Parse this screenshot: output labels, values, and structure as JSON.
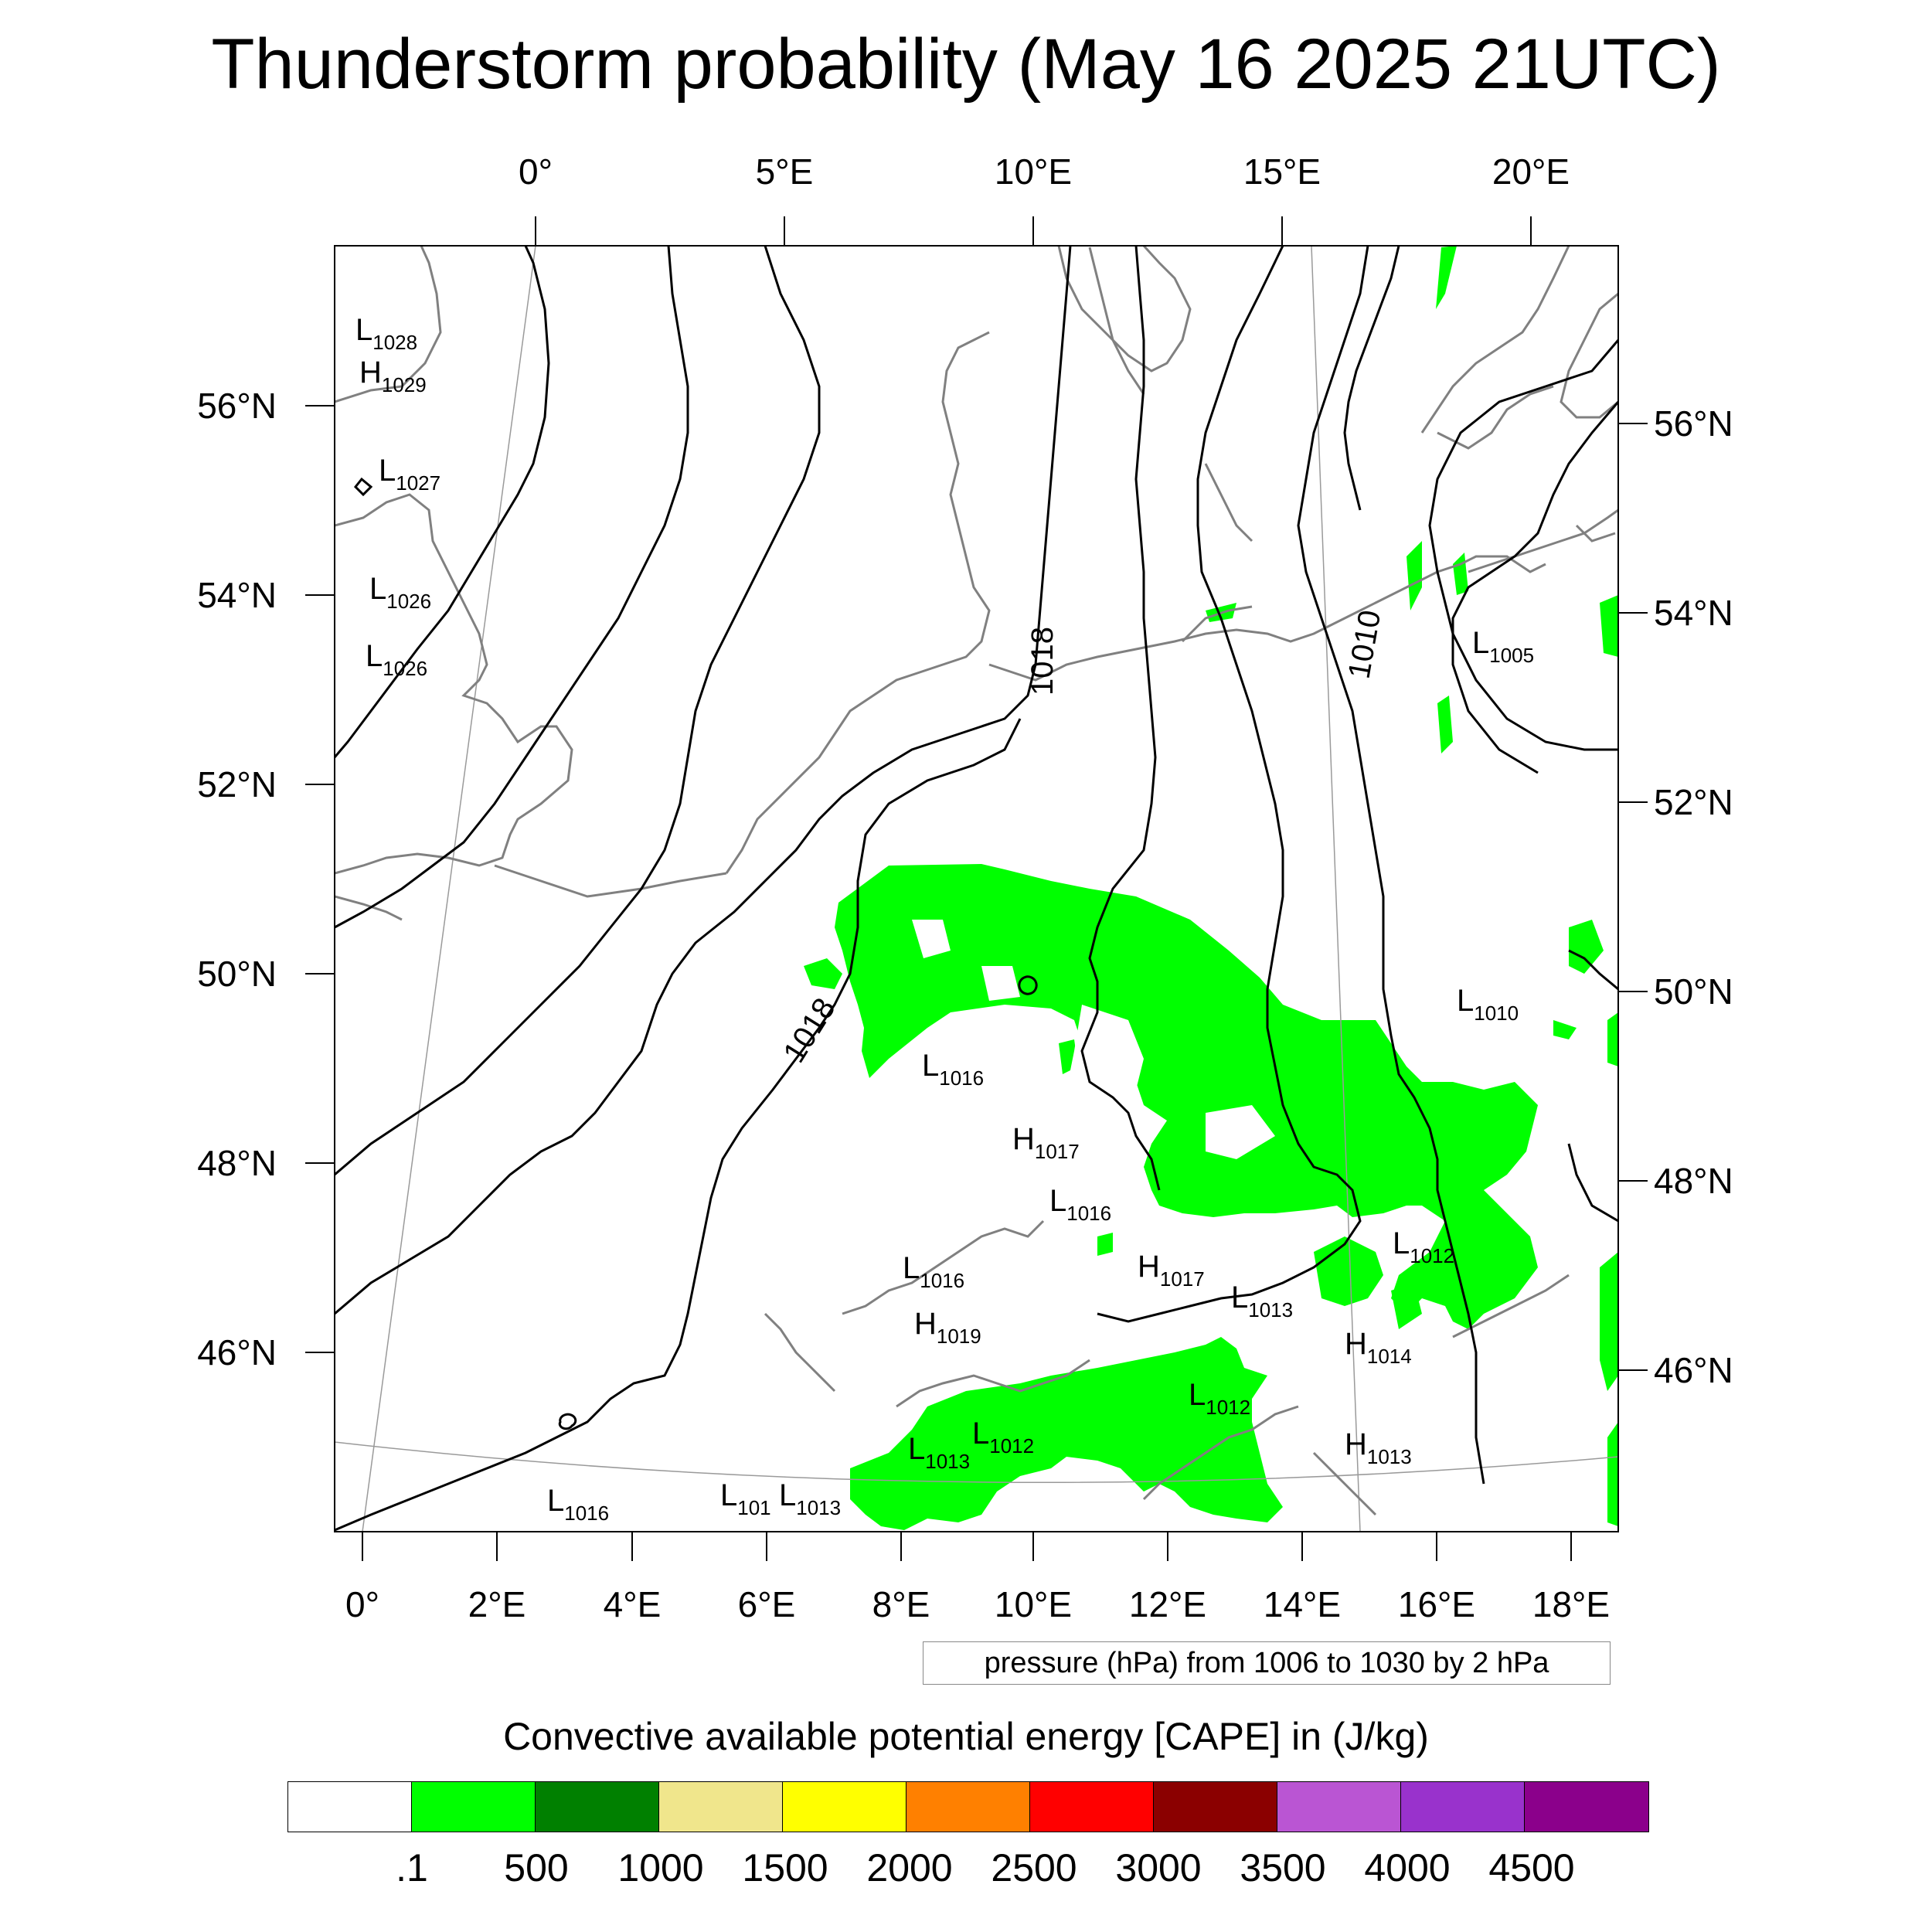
{
  "title": "Thunderstorm probability (May 16 2025 21UTC)",
  "map": {
    "top_lon_labels": [
      "0°",
      "5°E",
      "10°E",
      "15°E",
      "20°E"
    ],
    "bottom_lon_labels": [
      "0°",
      "2°E",
      "4°E",
      "6°E",
      "8°E",
      "10°E",
      "12°E",
      "14°E",
      "16°E",
      "18°E"
    ],
    "left_lat_labels": [
      "56°N",
      "54°N",
      "52°N",
      "50°N",
      "48°N",
      "46°N"
    ],
    "right_lat_labels": [
      "56°N",
      "54°N",
      "52°N",
      "50°N",
      "48°N",
      "46°N"
    ],
    "isobar_labels": [
      "1018",
      "1010",
      "1018"
    ],
    "pressure_centers": [
      {
        "type": "L",
        "value": "1028"
      },
      {
        "type": "H",
        "value": "1029"
      },
      {
        "type": "L",
        "value": "1027"
      },
      {
        "type": "L",
        "value": "1026"
      },
      {
        "type": "L",
        "value": "1026"
      },
      {
        "type": "L",
        "value": "1005"
      },
      {
        "type": "L",
        "value": "1010"
      },
      {
        "type": "L",
        "value": "1016"
      },
      {
        "type": "H",
        "value": "1017"
      },
      {
        "type": "L",
        "value": "1016"
      },
      {
        "type": "L",
        "value": "1016"
      },
      {
        "type": "H",
        "value": "1017"
      },
      {
        "type": "L",
        "value": "1013"
      },
      {
        "type": "L",
        "value": "1012"
      },
      {
        "type": "H",
        "value": "1019"
      },
      {
        "type": "H",
        "value": "1014"
      },
      {
        "type": "L",
        "value": "1012"
      },
      {
        "type": "L",
        "value": "1013"
      },
      {
        "type": "L",
        "value": "1012"
      },
      {
        "type": "H",
        "value": "1013"
      },
      {
        "type": "L",
        "value": "1016"
      },
      {
        "type": "L",
        "value": "101"
      },
      {
        "type": "L",
        "value": "1013"
      }
    ],
    "colors": {
      "cape_fill": "#00ff00",
      "coast": "#808080",
      "isobar": "#000000"
    }
  },
  "pressure_note": "pressure (hPa) from 1006 to 1030 by 2 hPa",
  "colorbar": {
    "title": "Convective available potential energy [CAPE] in (J/kg)",
    "colors": [
      "#ffffff",
      "#00ff00",
      "#008000",
      "#f0e68c",
      "#ffff00",
      "#ff8000",
      "#ff0000",
      "#8b0000",
      "#ba55d3",
      "#9932cc",
      "#8b008b"
    ],
    "labels": [
      ".1",
      "500",
      "1000",
      "1500",
      "2000",
      "2500",
      "3000",
      "3500",
      "4000",
      "4500"
    ]
  }
}
